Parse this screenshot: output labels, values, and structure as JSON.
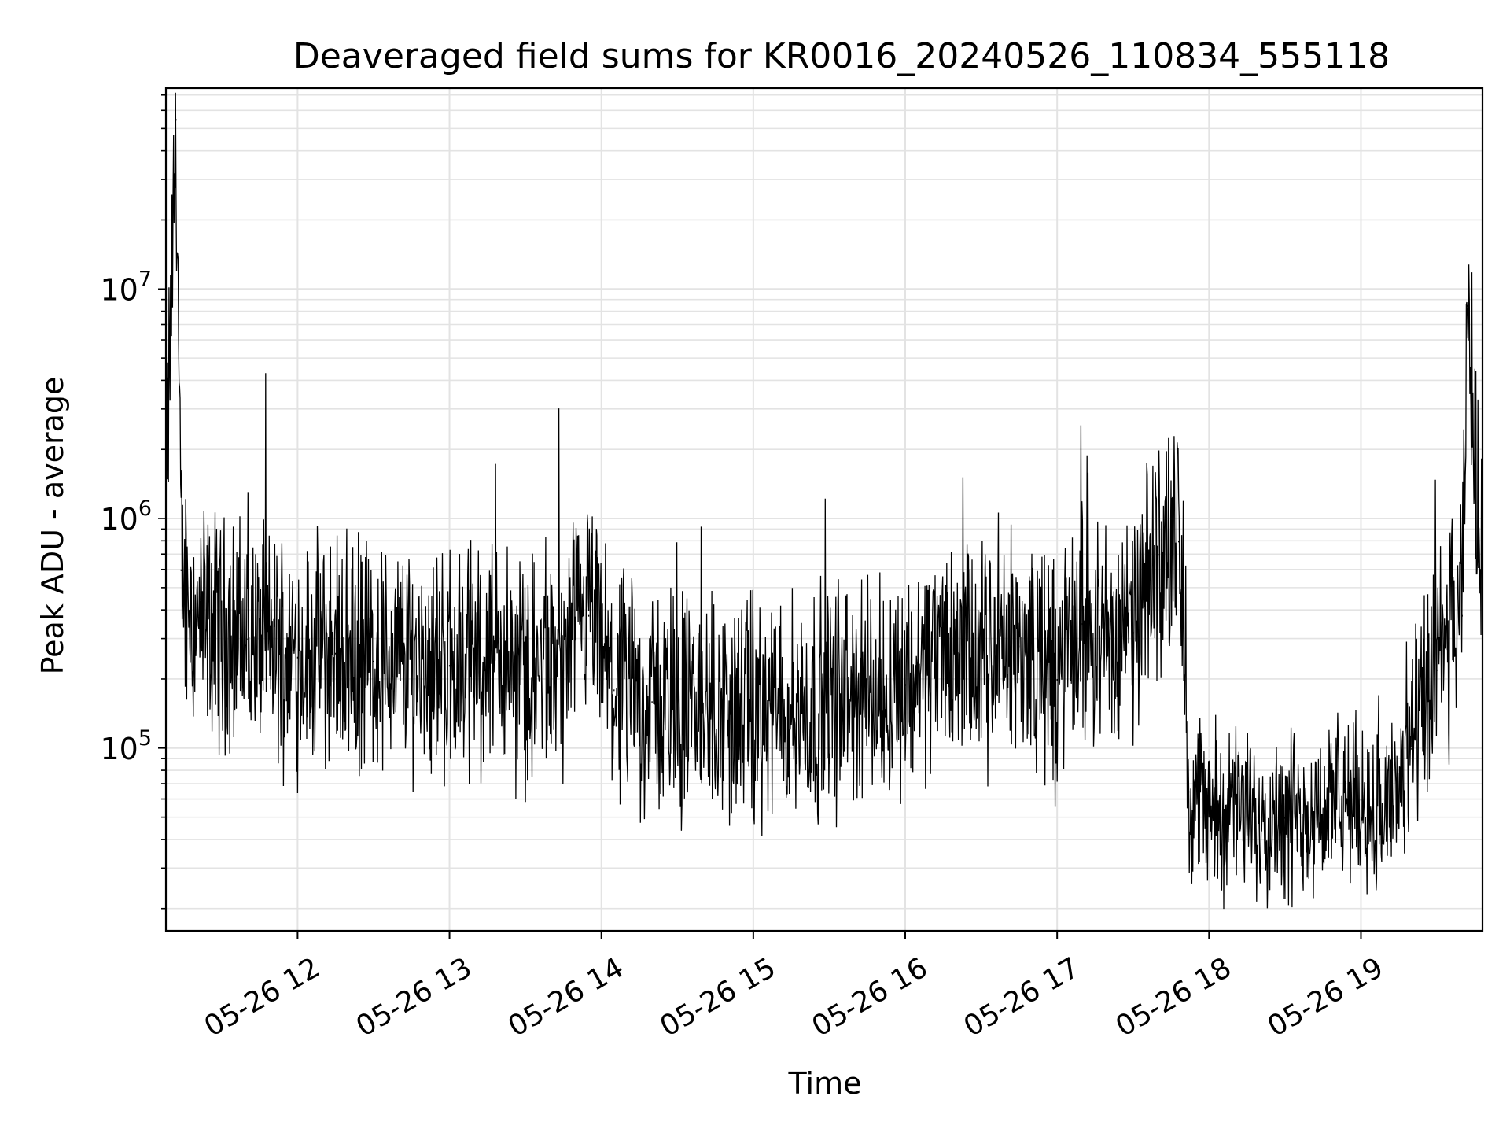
{
  "chart_data": {
    "type": "line",
    "title": "Deaveraged field sums for KR0016_20240526_110834_555118",
    "xlabel": "Time",
    "ylabel": "Peak ADU - average",
    "yscale": "log",
    "xlim": [
      "05-26 11:08",
      "05-26 19:48"
    ],
    "ylim": [
      16000,
      75000000
    ],
    "grid": true,
    "line_color": "#000000",
    "x_ticks": [
      {
        "t": "05-26 12:00",
        "label": "05-26 12"
      },
      {
        "t": "05-26 13:00",
        "label": "05-26 13"
      },
      {
        "t": "05-26 14:00",
        "label": "05-26 14"
      },
      {
        "t": "05-26 15:00",
        "label": "05-26 15"
      },
      {
        "t": "05-26 16:00",
        "label": "05-26 16"
      },
      {
        "t": "05-26 17:00",
        "label": "05-26 17"
      },
      {
        "t": "05-26 18:00",
        "label": "05-26 18"
      },
      {
        "t": "05-26 19:00",
        "label": "05-26 19"
      }
    ],
    "y_ticks": [
      {
        "value": 100000,
        "base": "10",
        "exp": "5"
      },
      {
        "value": 1000000,
        "base": "10",
        "exp": "6"
      },
      {
        "value": 10000000,
        "base": "10",
        "exp": "7"
      }
    ],
    "series": [
      {
        "x": [
          "05-26 11:08",
          "05-26 11:10",
          "05-26 11:12",
          "05-26 11:14",
          "05-26 11:20",
          "05-26 11:30",
          "05-26 11:40",
          "05-26 11:50",
          "05-26 12:00",
          "05-26 12:15",
          "05-26 12:30",
          "05-26 12:45",
          "05-26 13:00",
          "05-26 13:15",
          "05-26 13:30",
          "05-26 13:45",
          "05-26 13:55",
          "05-26 14:05",
          "05-26 14:20",
          "05-26 14:40",
          "05-26 15:00",
          "05-26 15:20",
          "05-26 15:40",
          "05-26 16:00",
          "05-26 16:15",
          "05-26 16:30",
          "05-26 16:45",
          "05-26 17:00",
          "05-26 17:10",
          "05-26 17:20",
          "05-26 17:30",
          "05-26 17:40",
          "05-26 17:45",
          "05-26 17:48",
          "05-26 17:52",
          "05-26 18:00",
          "05-26 18:15",
          "05-26 18:30",
          "05-26 18:45",
          "05-26 19:00",
          "05-26 19:10",
          "05-26 19:20",
          "05-26 19:30",
          "05-26 19:40",
          "05-26 19:42",
          "05-26 19:48"
        ],
        "y": [
          1200000,
          8000000,
          55000000,
          600000,
          350000,
          330000,
          300000,
          280000,
          250000,
          260000,
          240000,
          250000,
          230000,
          260000,
          210000,
          220000,
          380000,
          180000,
          160000,
          150000,
          140000,
          150000,
          170000,
          190000,
          280000,
          230000,
          280000,
          200000,
          350000,
          300000,
          320000,
          700000,
          900000,
          800000,
          65000,
          55000,
          52000,
          50000,
          55000,
          60000,
          52000,
          100000,
          220000,
          380000,
          8500000,
          480000
        ]
      }
    ]
  }
}
